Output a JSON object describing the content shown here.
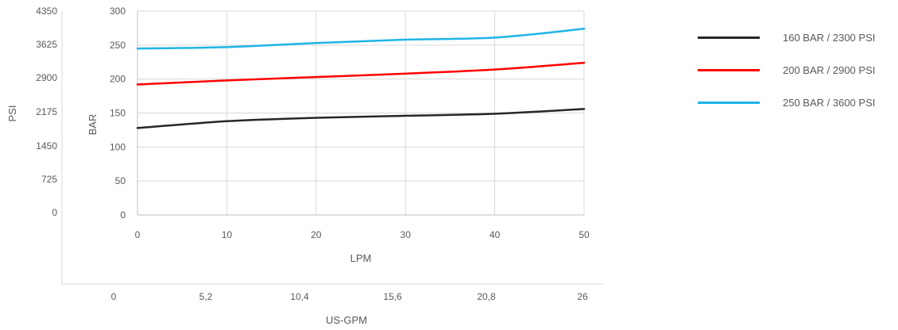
{
  "chart_data": {
    "type": "line",
    "x_axis": {
      "label": "LPM",
      "range": [
        0,
        50
      ],
      "ticks": [
        "0",
        "10",
        "20",
        "30",
        "40",
        "50"
      ]
    },
    "x2_axis": {
      "label": "US-GPM",
      "ticks": [
        "0",
        "5,2",
        "10,4",
        "15,6",
        "20,8",
        "26"
      ]
    },
    "y_axis": {
      "label": "BAR",
      "range": [
        0,
        300
      ],
      "ticks": [
        "0",
        "50",
        "100",
        "150",
        "200",
        "250",
        "300"
      ]
    },
    "y2_axis": {
      "label": "PSI",
      "ticks": [
        "0",
        "725",
        "1450",
        "2175",
        "2900",
        "3625",
        "4350"
      ]
    },
    "grid": true,
    "legend_position": "right",
    "series": [
      {
        "name": "160 BAR / 2300 PSI",
        "color": "#262626",
        "x": [
          0,
          10,
          20,
          30,
          40,
          50
        ],
        "y": [
          128,
          138,
          143,
          146,
          149,
          156
        ]
      },
      {
        "name": "200 BAR / 2900 PSI",
        "color": "#ff0000",
        "x": [
          0,
          10,
          20,
          30,
          40,
          50
        ],
        "y": [
          192,
          198,
          203,
          208,
          214,
          224
        ]
      },
      {
        "name": "250 BAR / 3600 PSI",
        "color": "#1fb4e6",
        "x": [
          0,
          10,
          20,
          30,
          40,
          50
        ],
        "y": [
          245,
          247,
          253,
          258,
          261,
          274
        ]
      }
    ]
  }
}
